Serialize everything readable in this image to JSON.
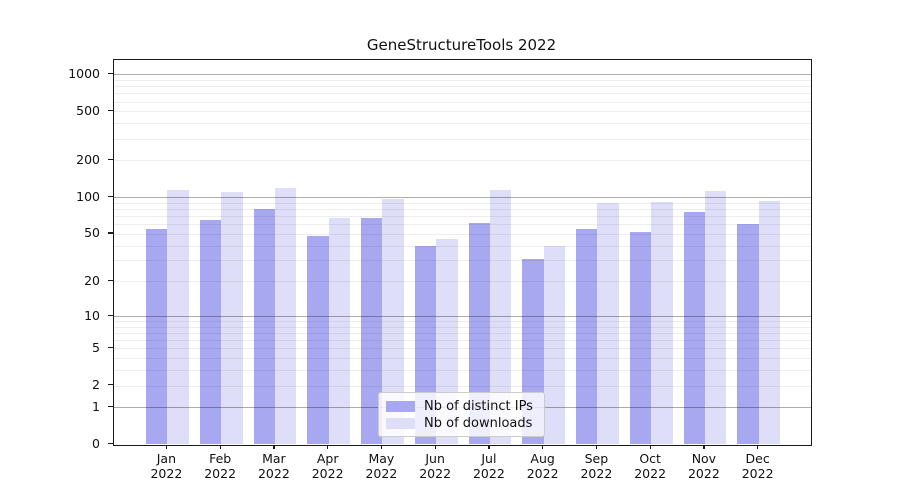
{
  "chart_data": {
    "type": "bar",
    "title": "GeneStructureTools 2022",
    "categories": [
      "Jan",
      "Feb",
      "Mar",
      "Apr",
      "May",
      "Jun",
      "Jul",
      "Aug",
      "Sep",
      "Oct",
      "Nov",
      "Dec"
    ],
    "year_label": "2022",
    "series": [
      {
        "name": "Nb of distinct IPs",
        "color": "#a8a8f1",
        "values": [
          55,
          65,
          80,
          48,
          68,
          40,
          61,
          31,
          55,
          52,
          75,
          60
        ]
      },
      {
        "name": "Nb of downloads",
        "color": "#dedef8",
        "values": [
          115,
          110,
          120,
          67,
          97,
          45,
          115,
          40,
          90,
          91,
          112,
          93
        ]
      }
    ],
    "yscale": "log1p",
    "ylim": [
      0,
      1300
    ],
    "ytick_labels": [
      "0",
      "1",
      "2",
      "5",
      "10",
      "20",
      "50",
      "100",
      "200",
      "500",
      "1000"
    ],
    "ytick_values": [
      0,
      1,
      2,
      5,
      10,
      20,
      50,
      100,
      200,
      500,
      1000
    ],
    "grid": "on",
    "legend_position": "lower center",
    "xlabel": "",
    "ylabel": ""
  }
}
